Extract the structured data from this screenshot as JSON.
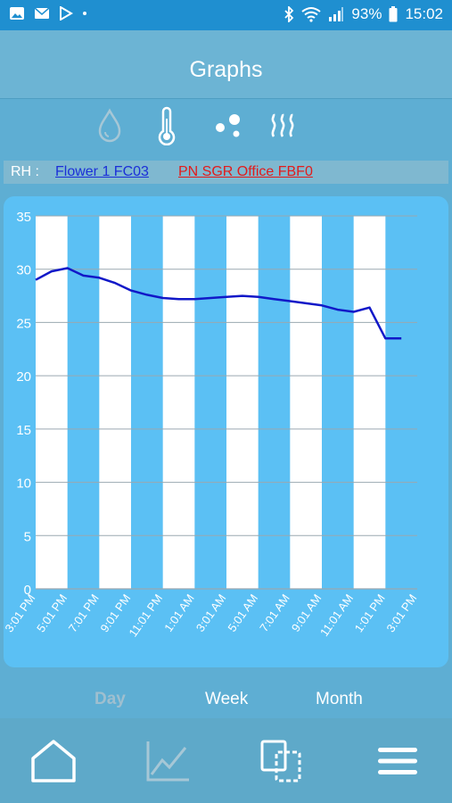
{
  "status_bar": {
    "battery": "93%",
    "time": "15:02",
    "left_icons": [
      "image-notification-icon",
      "mail-icon",
      "play-store-icon",
      "dot-icon"
    ],
    "right_icons": [
      "bluetooth-icon",
      "wifi-icon",
      "signal-icon",
      "battery-icon"
    ]
  },
  "header": {
    "title": "Graphs"
  },
  "metrics": [
    {
      "id": "humidity",
      "icon": "water-drop-icon",
      "selected": false
    },
    {
      "id": "temperature",
      "icon": "thermometer-icon",
      "selected": true
    },
    {
      "id": "dew-point",
      "icon": "droplets-icon",
      "selected": true
    },
    {
      "id": "heat",
      "icon": "heat-waves-icon",
      "selected": true
    }
  ],
  "sensor_bar": {
    "label": "RH :",
    "sensor1": "Flower 1 FC03",
    "sensor2": "PN SGR Office FBF0"
  },
  "chart_data": {
    "type": "line",
    "y_ticks": [
      0,
      5,
      10,
      15,
      20,
      25,
      30,
      35
    ],
    "ylim": [
      0,
      35
    ],
    "x_labels": [
      "3:01 PM",
      "5:01 PM",
      "7:01 PM",
      "9:01 PM",
      "11:01 PM",
      "1:01 AM",
      "3:01 AM",
      "5:01 AM",
      "7:01 AM",
      "9:01 AM",
      "11:01 AM",
      "1:01 PM",
      "3:01 PM"
    ],
    "series": [
      {
        "color": "#1118c8",
        "x": [
          0,
          0.5,
          1,
          1.5,
          2,
          2.5,
          3,
          3.5,
          4,
          4.5,
          5,
          5.5,
          6,
          6.5,
          7,
          7.5,
          8,
          8.5,
          9,
          9.5,
          10,
          10.5,
          11,
          11.5
        ],
        "values": [
          29.0,
          29.8,
          30.1,
          29.4,
          29.2,
          28.7,
          28.0,
          27.6,
          27.3,
          27.2,
          27.2,
          27.3,
          27.4,
          27.5,
          27.4,
          27.2,
          27.0,
          26.8,
          26.6,
          26.2,
          26.0,
          26.4,
          23.5,
          23.5
        ]
      }
    ],
    "grid": true,
    "stripe_color": "#ffffff",
    "background_color": "#5bc0f4"
  },
  "periods": [
    {
      "label": "Day",
      "active": true
    },
    {
      "label": "Week",
      "active": false
    },
    {
      "label": "Month",
      "active": false
    }
  ],
  "bottom_nav": [
    {
      "id": "home",
      "icon": "home-icon"
    },
    {
      "id": "graphs",
      "icon": "line-chart-icon",
      "active": true
    },
    {
      "id": "devices",
      "icon": "devices-icon"
    },
    {
      "id": "menu",
      "icon": "menu-icon"
    }
  ],
  "colors": {
    "status_bar": "#1f8fd0",
    "accent": "#5bc0f4",
    "line": "#1118c8",
    "sensor1": "#1b2fd8",
    "sensor2": "#e21b1b"
  }
}
